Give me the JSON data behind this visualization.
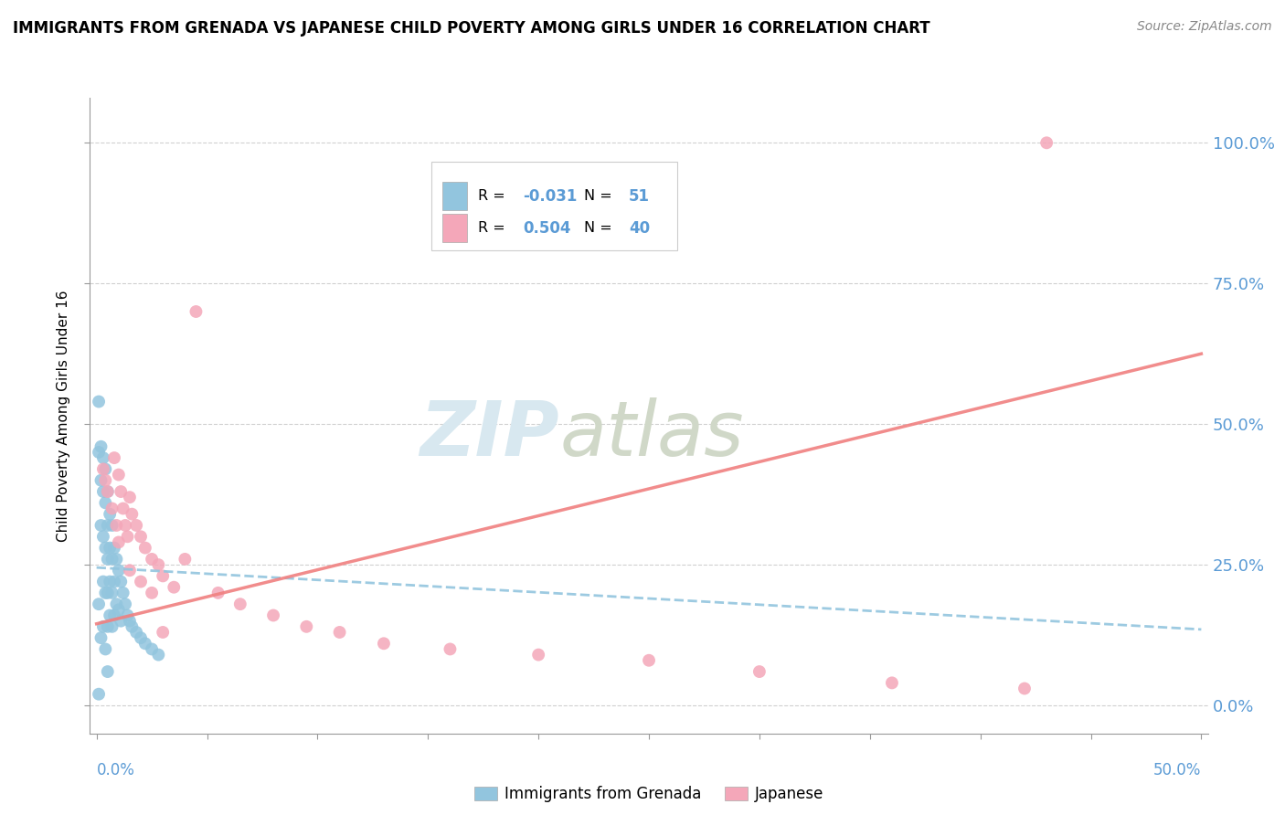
{
  "title": "IMMIGRANTS FROM GRENADA VS JAPANESE CHILD POVERTY AMONG GIRLS UNDER 16 CORRELATION CHART",
  "source": "Source: ZipAtlas.com",
  "ylabel": "Child Poverty Among Girls Under 16",
  "ytick_vals": [
    0.0,
    0.25,
    0.5,
    0.75,
    1.0
  ],
  "ytick_labels": [
    "0.0%",
    "25.0%",
    "50.0%",
    "75.0%",
    "100.0%"
  ],
  "xlim": [
    0.0,
    0.5
  ],
  "ylim": [
    0.0,
    1.05
  ],
  "color_blue": "#92C5DE",
  "color_pink": "#F4A7B9",
  "line_blue_color": "#92C5DE",
  "line_pink_color": "#F08080",
  "blue_x": [
    0.001,
    0.001,
    0.001,
    0.002,
    0.002,
    0.002,
    0.002,
    0.003,
    0.003,
    0.003,
    0.003,
    0.003,
    0.004,
    0.004,
    0.004,
    0.004,
    0.004,
    0.005,
    0.005,
    0.005,
    0.005,
    0.005,
    0.005,
    0.006,
    0.006,
    0.006,
    0.006,
    0.007,
    0.007,
    0.007,
    0.007,
    0.008,
    0.008,
    0.008,
    0.009,
    0.009,
    0.01,
    0.01,
    0.011,
    0.011,
    0.012,
    0.013,
    0.014,
    0.015,
    0.016,
    0.018,
    0.02,
    0.022,
    0.025,
    0.028,
    0.001
  ],
  "blue_y": [
    0.54,
    0.45,
    0.18,
    0.46,
    0.4,
    0.32,
    0.12,
    0.44,
    0.38,
    0.3,
    0.22,
    0.14,
    0.42,
    0.36,
    0.28,
    0.2,
    0.1,
    0.38,
    0.32,
    0.26,
    0.2,
    0.14,
    0.06,
    0.34,
    0.28,
    0.22,
    0.16,
    0.32,
    0.26,
    0.2,
    0.14,
    0.28,
    0.22,
    0.16,
    0.26,
    0.18,
    0.24,
    0.17,
    0.22,
    0.15,
    0.2,
    0.18,
    0.16,
    0.15,
    0.14,
    0.13,
    0.12,
    0.11,
    0.1,
    0.09,
    0.02
  ],
  "pink_x": [
    0.003,
    0.004,
    0.005,
    0.007,
    0.008,
    0.009,
    0.01,
    0.011,
    0.012,
    0.013,
    0.014,
    0.015,
    0.016,
    0.018,
    0.02,
    0.022,
    0.025,
    0.028,
    0.03,
    0.035,
    0.04,
    0.045,
    0.055,
    0.065,
    0.08,
    0.095,
    0.11,
    0.13,
    0.16,
    0.2,
    0.25,
    0.3,
    0.36,
    0.42,
    0.01,
    0.015,
    0.02,
    0.025,
    0.03,
    0.43
  ],
  "pink_y": [
    0.42,
    0.4,
    0.38,
    0.35,
    0.44,
    0.32,
    0.41,
    0.38,
    0.35,
    0.32,
    0.3,
    0.37,
    0.34,
    0.32,
    0.3,
    0.28,
    0.26,
    0.25,
    0.23,
    0.21,
    0.26,
    0.7,
    0.2,
    0.18,
    0.16,
    0.14,
    0.13,
    0.11,
    0.1,
    0.09,
    0.08,
    0.06,
    0.04,
    0.03,
    0.29,
    0.24,
    0.22,
    0.2,
    0.13,
    1.0
  ],
  "blue_line_x": [
    0.0,
    0.5
  ],
  "blue_line_y": [
    0.245,
    0.135
  ],
  "pink_line_x": [
    0.0,
    0.5
  ],
  "pink_line_y": [
    0.145,
    0.625
  ],
  "legend_r1": "-0.031",
  "legend_n1": "51",
  "legend_r2": "0.504",
  "legend_n2": "40",
  "watermark_zip": "ZIP",
  "watermark_atlas": "atlas",
  "label_blue": "Immigrants from Grenada",
  "label_pink": "Japanese"
}
